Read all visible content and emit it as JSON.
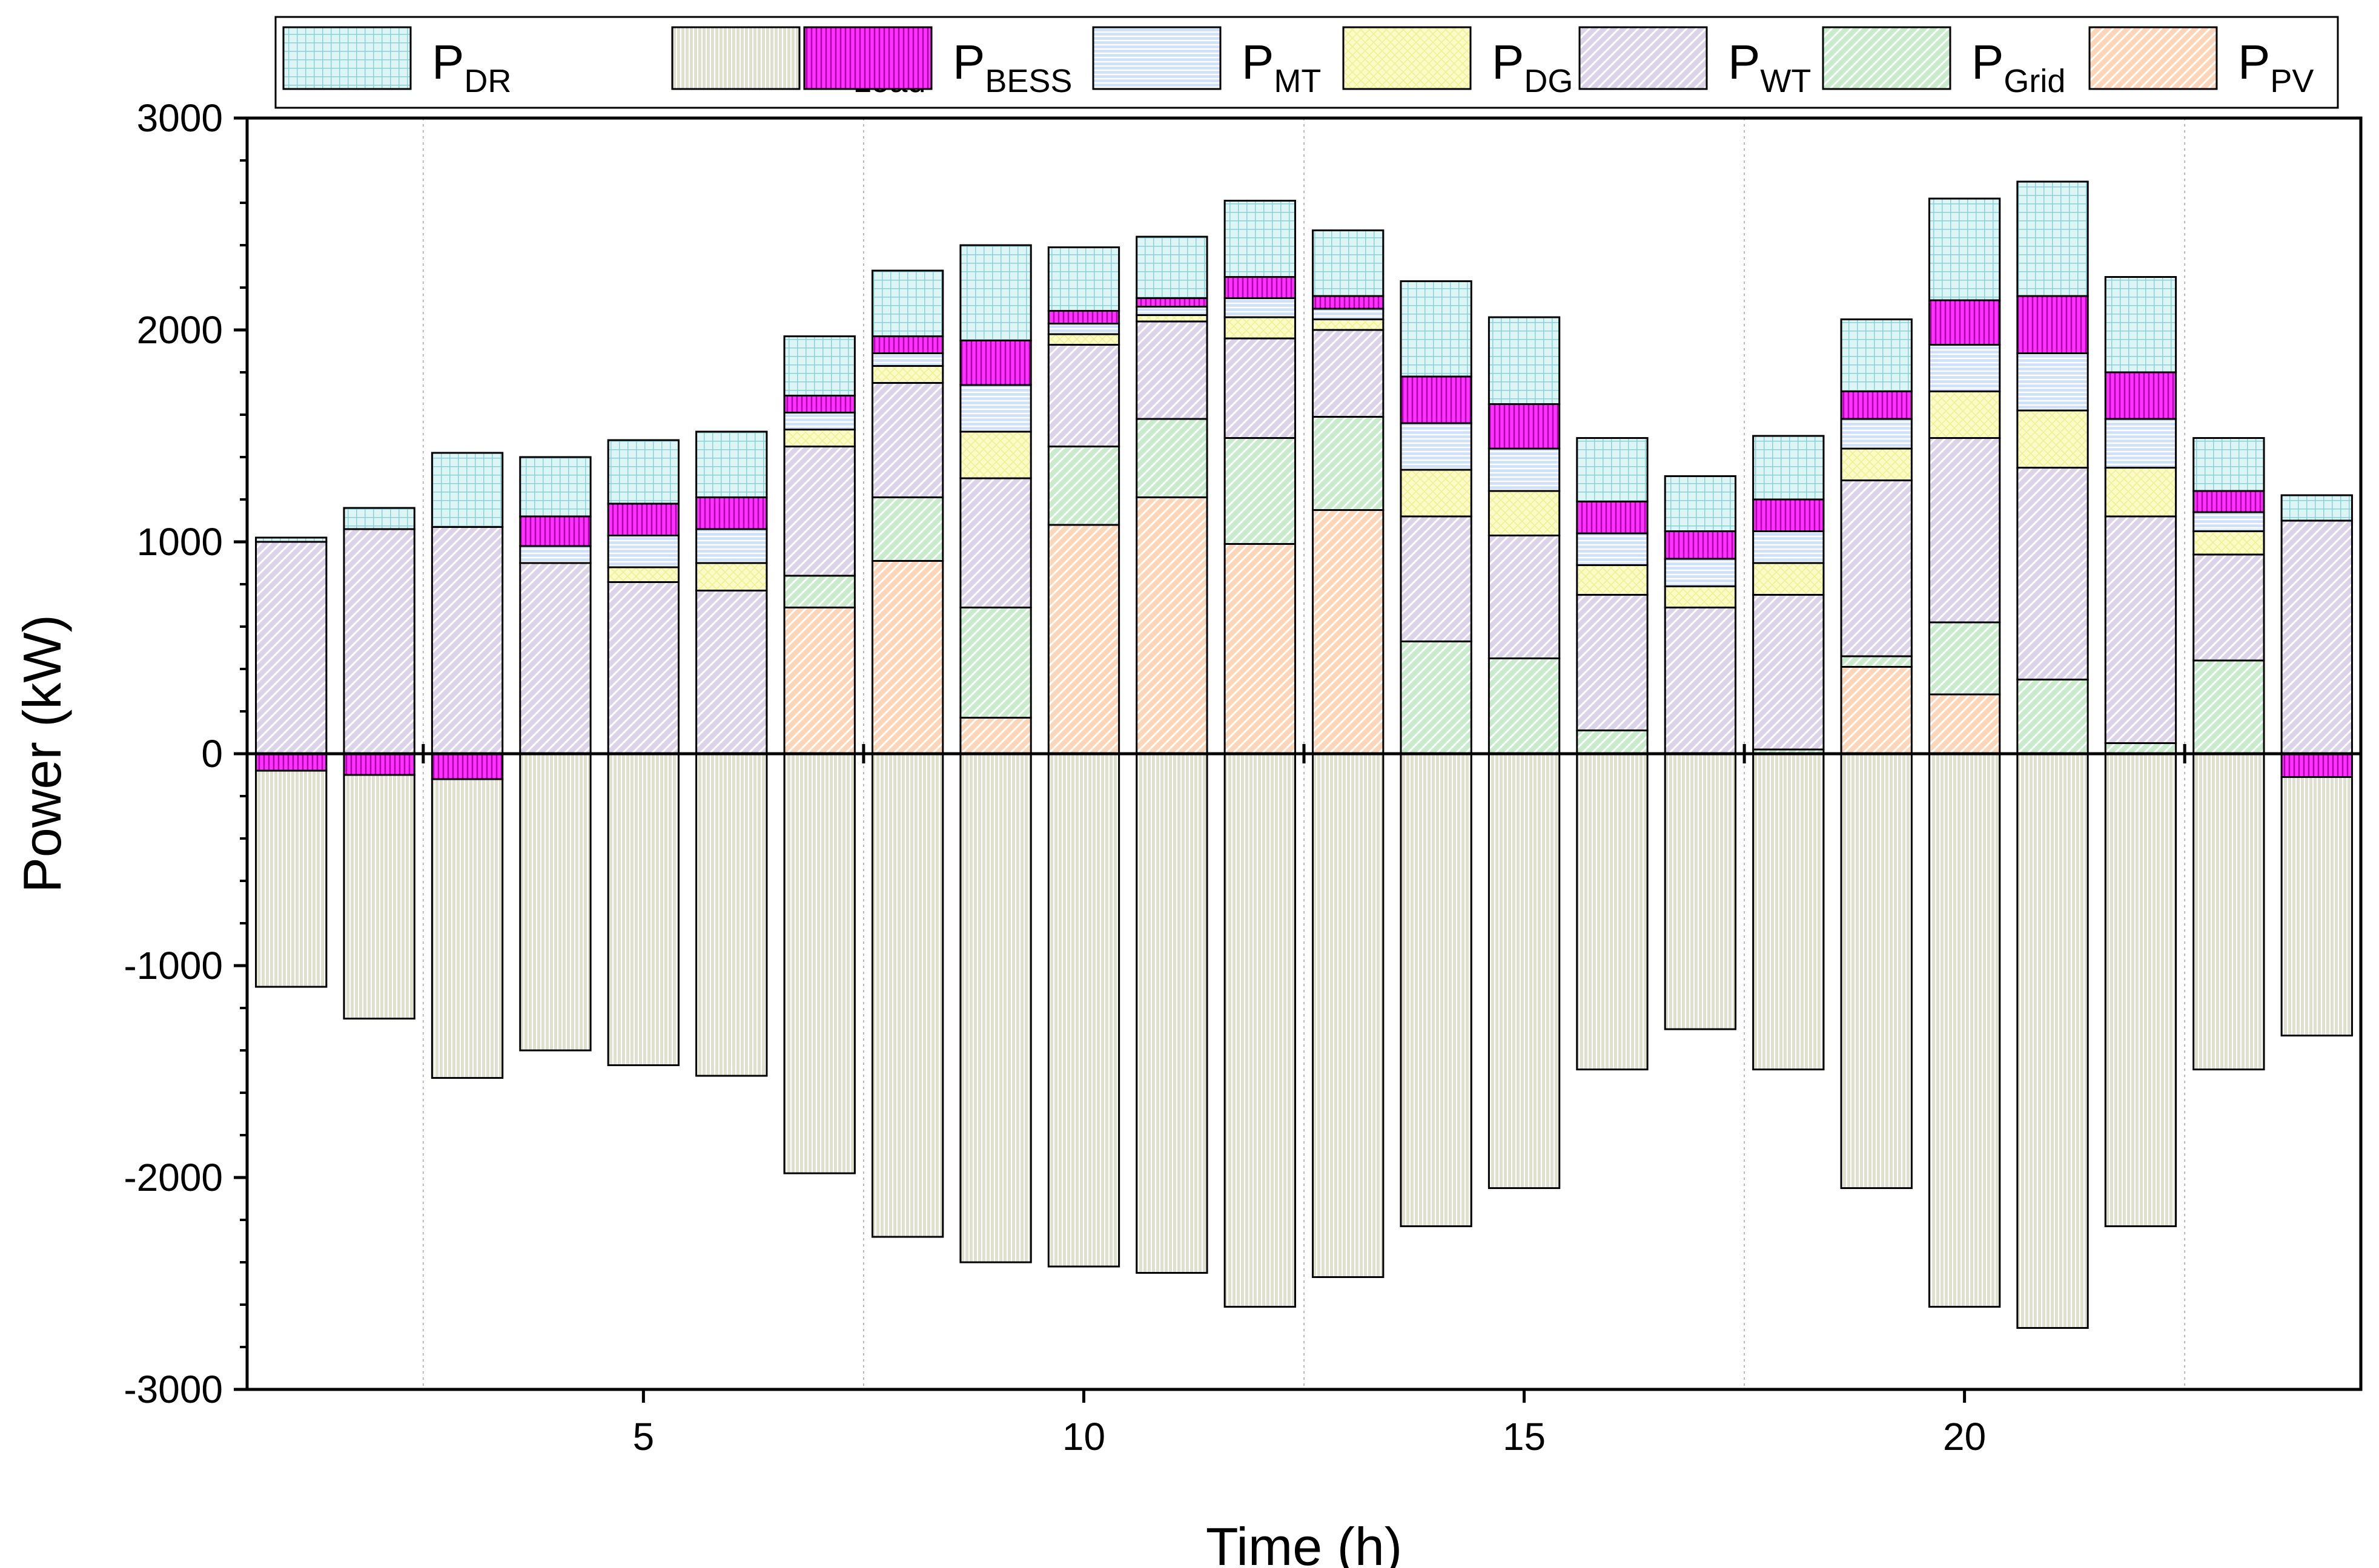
{
  "chart_data": {
    "type": "bar",
    "stacked": true,
    "xlabel": "Time (h)",
    "ylabel": "Power (kW)",
    "ylim": [
      -3000,
      3000
    ],
    "yticks": [
      -3000,
      -2000,
      -1000,
      0,
      1000,
      2000,
      3000
    ],
    "yticks_labels": [
      "-3000",
      "-2000",
      "-1000",
      "0",
      "1000",
      "2000",
      "3000"
    ],
    "xlim": [
      0.5,
      24.5
    ],
    "xticks": [
      5,
      10,
      15,
      20
    ],
    "xticks_labels": [
      "5",
      "10",
      "15",
      "20"
    ],
    "x": [
      1,
      2,
      3,
      4,
      5,
      6,
      7,
      8,
      9,
      10,
      11,
      12,
      13,
      14,
      15,
      16,
      17,
      18,
      19,
      20,
      21,
      22,
      23,
      24
    ],
    "grid": "vertical dotted lines at x = 2.5, 7.5, 12.5, 17.5, 22.5",
    "legend_position": "top",
    "legend": [
      {
        "key": "DR",
        "base": "P",
        "sub": "DR"
      },
      {
        "key": "Load",
        "base": "P",
        "sub": "Load"
      },
      {
        "key": "BESS",
        "base": "P",
        "sub": "BESS"
      },
      {
        "key": "MT",
        "base": "P",
        "sub": "MT"
      },
      {
        "key": "DG",
        "base": "P",
        "sub": "DG"
      },
      {
        "key": "WT",
        "base": "P",
        "sub": "WT"
      },
      {
        "key": "Grid",
        "base": "P",
        "sub": "Grid"
      },
      {
        "key": "PV",
        "base": "P",
        "sub": "PV"
      }
    ],
    "stack_order_positive": [
      "PV",
      "Grid",
      "WT",
      "DG",
      "MT",
      "BESS",
      "DR"
    ],
    "series": [
      {
        "name": "P_PV",
        "key": "PV",
        "color": "#fbd6b8",
        "stroke": "#f0a870",
        "values": [
          0,
          0,
          0,
          0,
          0,
          0,
          690,
          910,
          170,
          1080,
          1210,
          990,
          1150,
          0,
          0,
          0,
          0,
          0,
          410,
          280,
          0,
          0,
          0,
          0
        ]
      },
      {
        "name": "P_Grid",
        "key": "Grid",
        "color": "#c8ebcb",
        "stroke": "#7cc78a",
        "values": [
          0,
          0,
          0,
          0,
          0,
          0,
          150,
          300,
          520,
          370,
          370,
          500,
          440,
          530,
          450,
          110,
          0,
          20,
          50,
          340,
          350,
          50,
          440,
          0
        ]
      },
      {
        "name": "P_WT",
        "key": "WT",
        "color": "#dcd3e9",
        "stroke": "#a392c4",
        "values": [
          1000,
          1060,
          1070,
          900,
          810,
          770,
          610,
          540,
          610,
          480,
          460,
          470,
          410,
          590,
          580,
          640,
          690,
          730,
          830,
          870,
          1000,
          1070,
          500,
          1100
        ]
      },
      {
        "name": "P_DG",
        "key": "DG",
        "color": "#fbfbc8",
        "stroke": "#d9d77a",
        "values": [
          0,
          0,
          0,
          0,
          70,
          130,
          80,
          80,
          220,
          50,
          30,
          100,
          50,
          220,
          210,
          140,
          100,
          150,
          150,
          220,
          270,
          230,
          110,
          0
        ]
      },
      {
        "name": "P_MT",
        "key": "MT",
        "color": "#cfe1f9",
        "stroke": "#7ea6dd",
        "values": [
          0,
          0,
          0,
          80,
          150,
          160,
          80,
          60,
          220,
          50,
          40,
          90,
          50,
          220,
          200,
          150,
          130,
          150,
          140,
          220,
          270,
          230,
          90,
          0
        ]
      },
      {
        "name": "P_BESS",
        "key": "BESS",
        "color": "#ff33ff",
        "stroke": "#b000b0",
        "values": [
          -80,
          -100,
          -120,
          140,
          150,
          150,
          80,
          80,
          210,
          60,
          40,
          100,
          60,
          220,
          210,
          150,
          130,
          150,
          130,
          210,
          270,
          220,
          100,
          -110
        ]
      },
      {
        "name": "P_DR",
        "key": "DR",
        "color": "#d8f3f3",
        "stroke": "#8fcfd6",
        "values": [
          20,
          100,
          350,
          280,
          300,
          310,
          280,
          310,
          450,
          300,
          290,
          360,
          310,
          450,
          410,
          300,
          260,
          300,
          340,
          480,
          540,
          450,
          250,
          120
        ]
      },
      {
        "name": "P_Load",
        "key": "Load",
        "color": "#dfe0cd",
        "stroke": "#a2a386",
        "values": [
          -1020,
          -1150,
          -1410,
          -1400,
          -1470,
          -1520,
          -1980,
          -2280,
          -2400,
          -2420,
          -2450,
          -2610,
          -2470,
          -2230,
          -2050,
          -1490,
          -1300,
          -1490,
          -2050,
          -2610,
          -2710,
          -2230,
          -1490,
          -1220
        ]
      }
    ]
  }
}
